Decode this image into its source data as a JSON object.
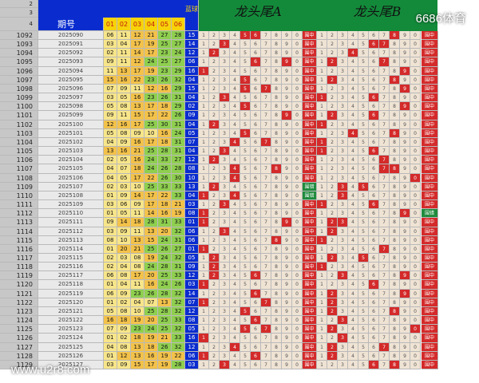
{
  "header": {
    "row_labels": [
      "2",
      "3",
      "4"
    ],
    "period_label": "期号",
    "position_labels": [
      "01",
      "02",
      "03",
      "04",
      "05",
      "06"
    ],
    "blue_ball_label": "蓝球",
    "section_a_title": "龙头尾A",
    "section_b_title": "龙头尾B"
  },
  "grid_digits": [
    "1",
    "2",
    "3",
    "4",
    "5",
    "6",
    "7",
    "8",
    "9",
    "0"
  ],
  "status_labels": {
    "group_a": "围中",
    "group_b": "围错"
  },
  "rows": [
    {
      "n": "1092",
      "period": "2025090",
      "nums": [
        "06",
        "11",
        "12",
        "21",
        "27",
        "28"
      ],
      "blue": "15"
    },
    {
      "n": "1093",
      "period": "2025091",
      "nums": [
        "03",
        "04",
        "17",
        "19",
        "25",
        "27"
      ],
      "blue": "14"
    },
    {
      "n": "1094",
      "period": "2025092",
      "nums": [
        "02",
        "11",
        "14",
        "17",
        "23",
        "24"
      ],
      "blue": "12"
    },
    {
      "n": "1095",
      "period": "2025093",
      "nums": [
        "09",
        "11",
        "12",
        "24",
        "25",
        "27"
      ],
      "blue": "06"
    },
    {
      "n": "1096",
      "period": "2025094",
      "nums": [
        "11",
        "13",
        "17",
        "19",
        "23",
        "29"
      ],
      "blue": "16"
    },
    {
      "n": "1097",
      "period": "2025095",
      "nums": [
        "15",
        "16",
        "22",
        "23",
        "26",
        "32"
      ],
      "blue": "04"
    },
    {
      "n": "1098",
      "period": "2025096",
      "nums": [
        "07",
        "09",
        "11",
        "12",
        "16",
        "29"
      ],
      "blue": "15"
    },
    {
      "n": "1099",
      "period": "2025097",
      "nums": [
        "03",
        "05",
        "16",
        "23",
        "26",
        "31"
      ],
      "blue": "04"
    },
    {
      "n": "1100",
      "period": "2025098",
      "nums": [
        "05",
        "08",
        "13",
        "17",
        "18",
        "29"
      ],
      "blue": "02"
    },
    {
      "n": "1101",
      "period": "2025099",
      "nums": [
        "09",
        "11",
        "15",
        "17",
        "22",
        "26"
      ],
      "blue": "09"
    },
    {
      "n": "1102",
      "period": "2025100",
      "nums": [
        "12",
        "16",
        "17",
        "25",
        "30",
        "31"
      ],
      "blue": "04"
    },
    {
      "n": "1103",
      "period": "2025101",
      "nums": [
        "05",
        "08",
        "09",
        "10",
        "16",
        "24"
      ],
      "blue": "05"
    },
    {
      "n": "1104",
      "period": "2025102",
      "nums": [
        "04",
        "09",
        "16",
        "17",
        "18",
        "31"
      ],
      "blue": "07"
    },
    {
      "n": "1105",
      "period": "2025103",
      "nums": [
        "13",
        "16",
        "21",
        "25",
        "28",
        "31"
      ],
      "blue": "04"
    },
    {
      "n": "1106",
      "period": "2025104",
      "nums": [
        "02",
        "05",
        "16",
        "24",
        "33",
        "27"
      ],
      "blue": "12"
    },
    {
      "n": "1107",
      "period": "2025105",
      "nums": [
        "04",
        "07",
        "18",
        "24",
        "26",
        "28"
      ],
      "blue": "08"
    },
    {
      "n": "1108",
      "period": "2025106",
      "nums": [
        "04",
        "05",
        "17",
        "22",
        "26",
        "30"
      ],
      "blue": "10"
    },
    {
      "n": "1109",
      "period": "2025107",
      "nums": [
        "02",
        "03",
        "10",
        "25",
        "33",
        "33"
      ],
      "blue": "13"
    },
    {
      "n": "1110",
      "period": "2025108",
      "nums": [
        "01",
        "09",
        "14",
        "17",
        "22",
        "33"
      ],
      "blue": "04"
    },
    {
      "n": "1111",
      "period": "2025109",
      "nums": [
        "03",
        "06",
        "09",
        "17",
        "18",
        "21"
      ],
      "blue": "03"
    },
    {
      "n": "1112",
      "period": "2025110",
      "nums": [
        "01",
        "05",
        "11",
        "14",
        "16",
        "19"
      ],
      "blue": "08"
    },
    {
      "n": "1113",
      "period": "2025111",
      "nums": [
        "09",
        "14",
        "18",
        "28",
        "31",
        "33"
      ],
      "blue": "01"
    },
    {
      "n": "1114",
      "period": "2025112",
      "nums": [
        "03",
        "09",
        "11",
        "13",
        "20",
        "32"
      ],
      "blue": "06"
    },
    {
      "n": "1115",
      "period": "2025113",
      "nums": [
        "08",
        "10",
        "13",
        "15",
        "24",
        "31"
      ],
      "blue": "06"
    },
    {
      "n": "1116",
      "period": "2025114",
      "nums": [
        "01",
        "20",
        "21",
        "25",
        "26",
        "27"
      ],
      "blue": "01"
    },
    {
      "n": "1117",
      "period": "2025115",
      "nums": [
        "02",
        "03",
        "08",
        "19",
        "24",
        "32"
      ],
      "blue": "05"
    },
    {
      "n": "1118",
      "period": "2025116",
      "nums": [
        "02",
        "04",
        "08",
        "24",
        "28",
        "31"
      ],
      "blue": "09"
    },
    {
      "n": "1119",
      "period": "2025117",
      "nums": [
        "06",
        "08",
        "17",
        "20",
        "25",
        "33"
      ],
      "blue": "12"
    },
    {
      "n": "1120",
      "period": "2025118",
      "nums": [
        "01",
        "04",
        "11",
        "16",
        "24",
        "26"
      ],
      "blue": "03"
    },
    {
      "n": "1121",
      "period": "2025119",
      "nums": [
        "06",
        "09",
        "23",
        "26",
        "28",
        "32"
      ],
      "blue": "14"
    },
    {
      "n": "1122",
      "period": "2025120",
      "nums": [
        "01",
        "02",
        "04",
        "07",
        "13",
        "32"
      ],
      "blue": "07"
    },
    {
      "n": "1123",
      "period": "2025121",
      "nums": [
        "05",
        "08",
        "10",
        "25",
        "28",
        "32"
      ],
      "blue": "12"
    },
    {
      "n": "1124",
      "period": "2025122",
      "nums": [
        "16",
        "18",
        "19",
        "20",
        "25",
        "33"
      ],
      "blue": "08"
    },
    {
      "n": "1125",
      "period": "2025123",
      "nums": [
        "07",
        "09",
        "23",
        "24",
        "25",
        "32"
      ],
      "blue": "05"
    },
    {
      "n": "1126",
      "period": "2025124",
      "nums": [
        "01",
        "02",
        "18",
        "19",
        "21",
        "33"
      ],
      "blue": "16"
    },
    {
      "n": "1127",
      "period": "2025125",
      "nums": [
        "04",
        "08",
        "13",
        "18",
        "26",
        "32"
      ],
      "blue": "12"
    },
    {
      "n": "1128",
      "period": "2025126",
      "nums": [
        "01",
        "12",
        "13",
        "16",
        "19",
        "22"
      ],
      "blue": "06"
    },
    {
      "n": "1129",
      "period": "2025127",
      "nums": [
        "03",
        "09",
        "15",
        "17",
        "19",
        "28"
      ],
      "blue": "03"
    }
  ],
  "watermark_top": "6686体育",
  "watermark_bottom": "www.u2r8.com",
  "colors": {
    "accent_blue": "#0a2ccf",
    "header_green": "#138a3a",
    "hit_red": "#d42a2a",
    "status_green": "#1f8b3d",
    "row_cell_bg": "#efe3d4"
  }
}
